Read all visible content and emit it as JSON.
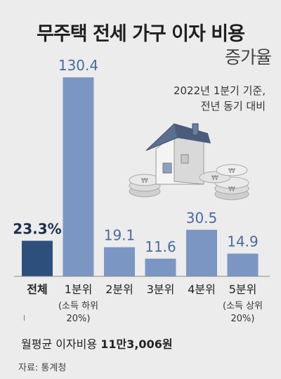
{
  "header": {
    "title": "무주택 전세 가구 이자 비용",
    "subtitle": "증가율",
    "basis_line1": "2022년 1분기 기준,",
    "basis_line2": "전년 동기 대비"
  },
  "footer": {
    "avg_label": "월평균 이자비용",
    "avg_value": "11만3,006원",
    "source": "자료: 통계청"
  },
  "colors": {
    "highlight": "#2d4f7c",
    "bar": "#7b96c3",
    "background": "#ececec"
  },
  "icons": [
    "house-icon",
    "coin-icon"
  ],
  "chart_data": {
    "type": "bar",
    "title": "무주택 전세 가구 이자 비용 증가율",
    "categories": [
      "전체",
      "1분위",
      "2분위",
      "3분위",
      "4분위",
      "5분위"
    ],
    "sublabels": [
      "",
      "(소득 하위\n20%)",
      "",
      "",
      "",
      "(소득 상위\n20%)"
    ],
    "values": [
      23.3,
      130.4,
      19.1,
      11.6,
      30.5,
      14.9
    ],
    "value_labels": [
      "23.3%",
      "130.4",
      "19.1",
      "11.6",
      "30.5",
      "14.9"
    ],
    "unit": "%",
    "ylim": [
      0,
      130.4
    ],
    "highlight_index": 0,
    "grid": false,
    "legend": "none"
  }
}
